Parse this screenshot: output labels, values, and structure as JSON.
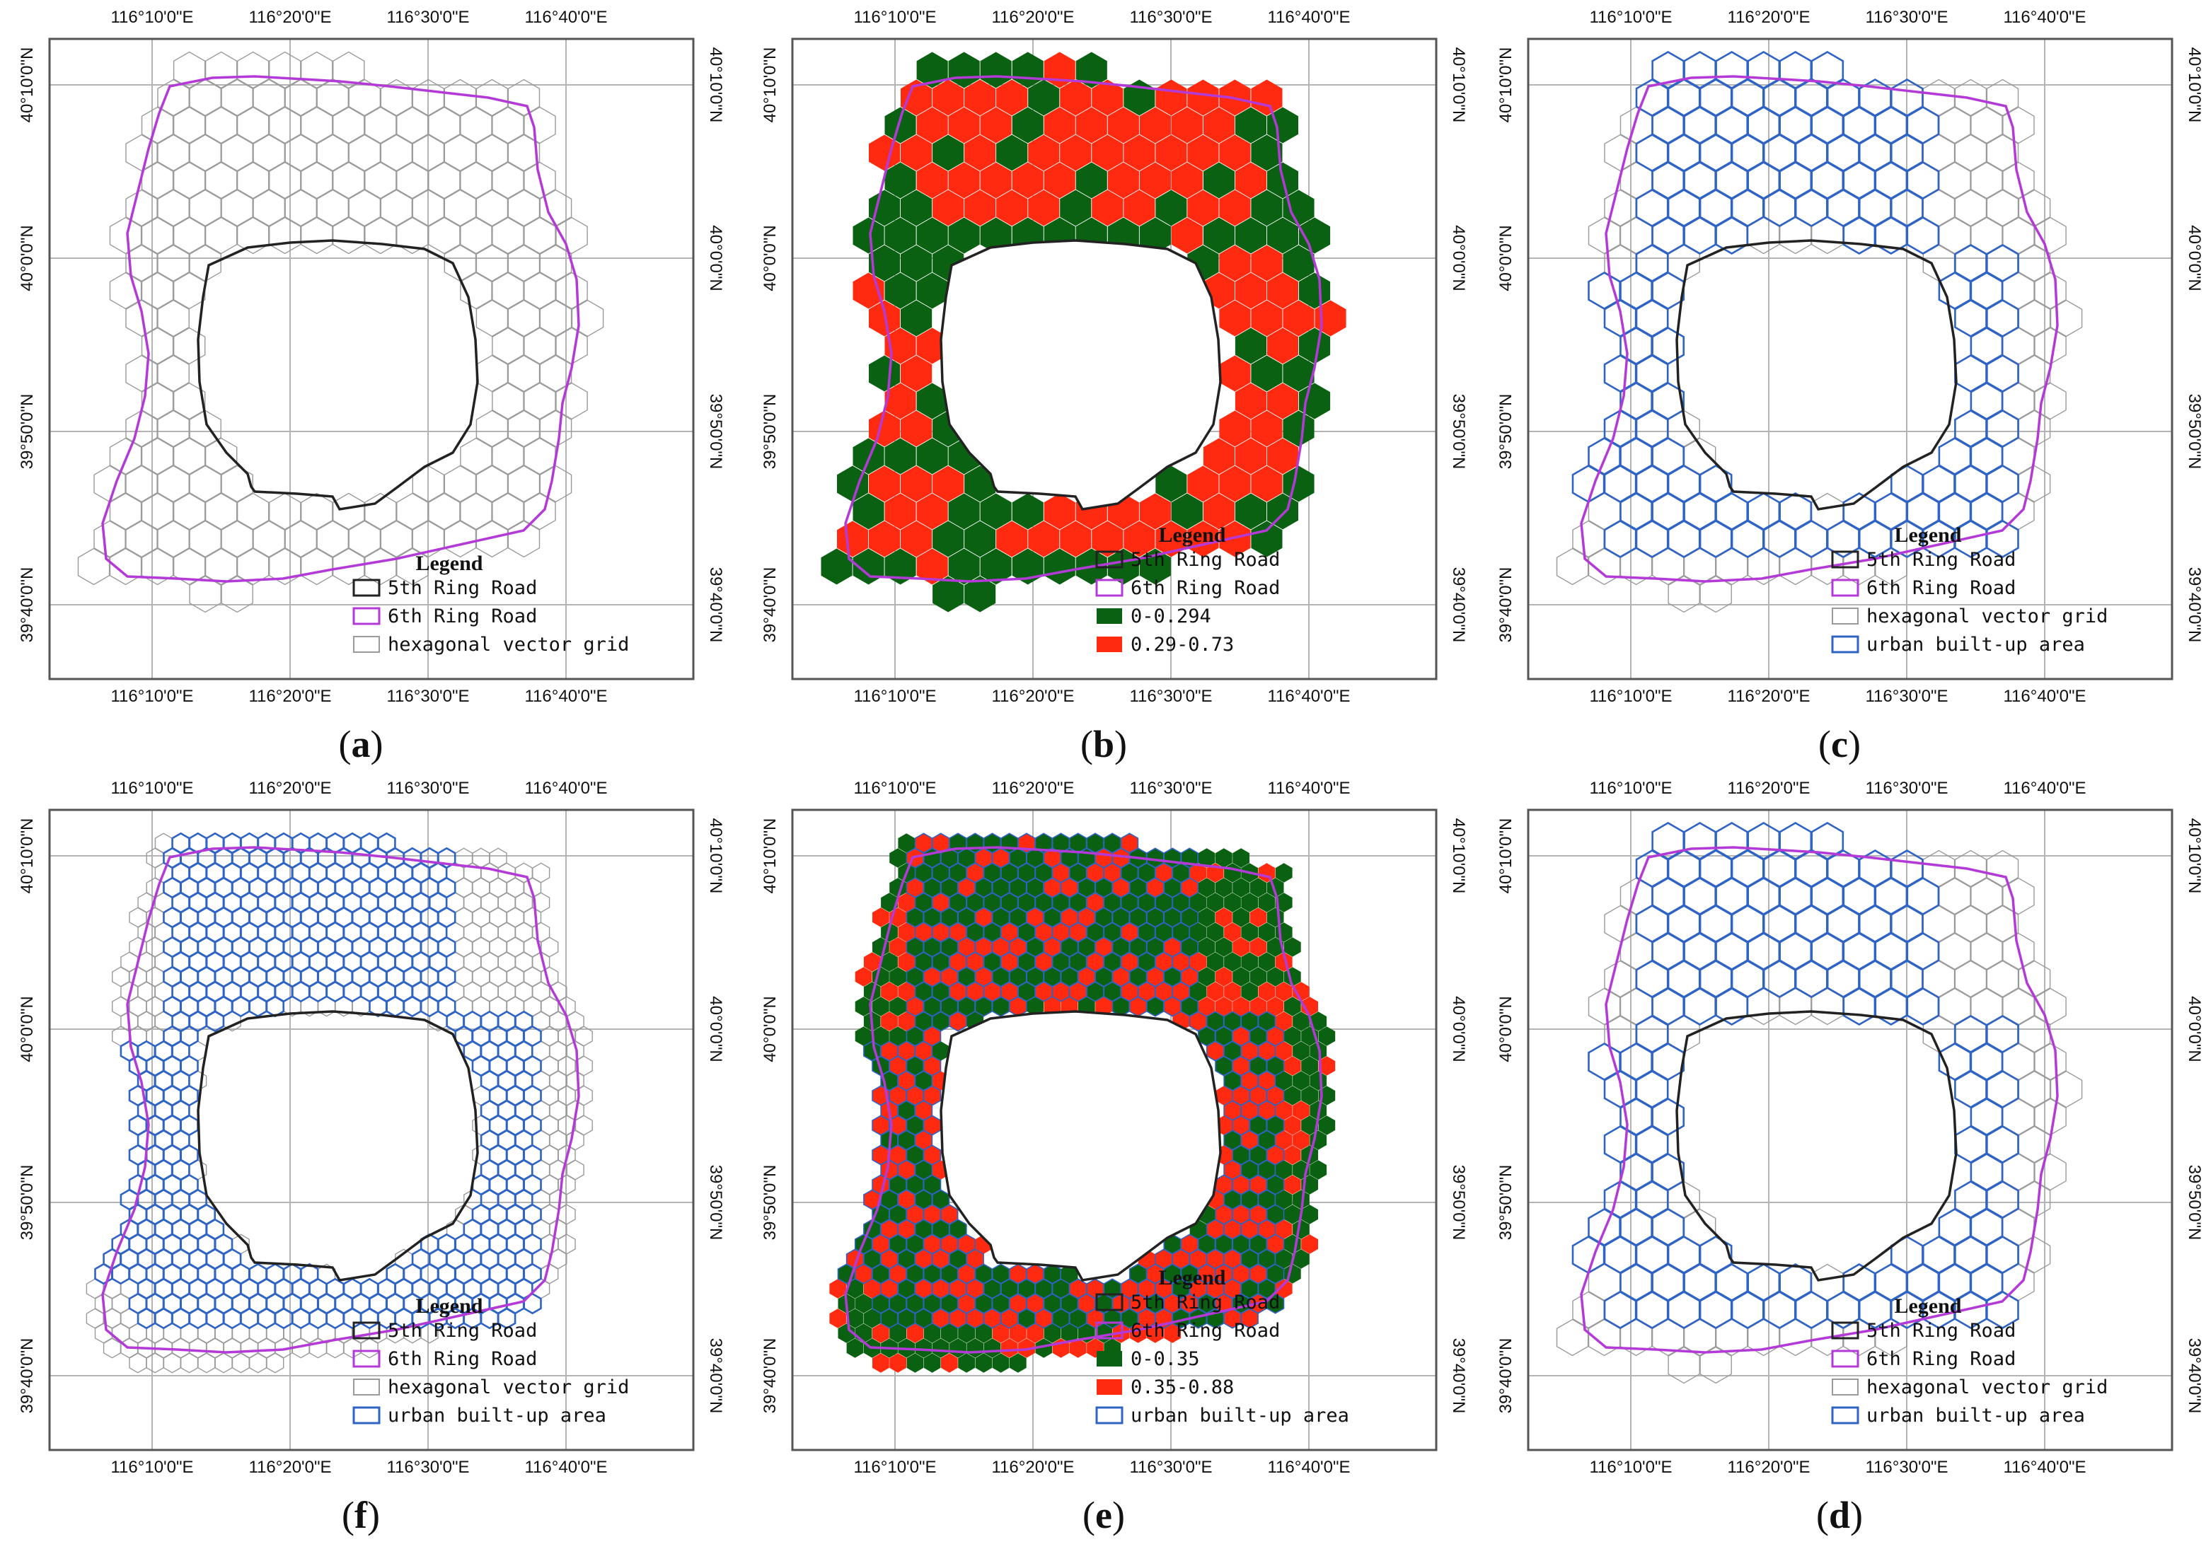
{
  "figure": {
    "colors": {
      "ring5": "#222222",
      "ring6": "#b43ad8",
      "grid": "#9a9a9a",
      "urban": "#2f63c4",
      "low": "#0a6112",
      "high": "#ff2a10",
      "frame": "#555555",
      "graticule": "#b4b4b4"
    },
    "panels": [
      {
        "id": "a",
        "label_open": "(",
        "label_letter": "a",
        "label_close": ")",
        "style": "grid",
        "legend": {
          "title": "Legend",
          "items": [
            {
              "text": "5th Ring Road",
              "kind": "ring5"
            },
            {
              "text": "6th Ring Road",
              "kind": "ring6"
            },
            {
              "text": "hexagonal vector grid",
              "kind": "grid"
            }
          ]
        }
      },
      {
        "id": "b",
        "label_open": "(",
        "label_letter": "b",
        "label_close": ")",
        "style": "classified",
        "legend": {
          "title": "Legend",
          "items": [
            {
              "text": "5th Ring Road",
              "kind": "ring5"
            },
            {
              "text": "6th Ring Road",
              "kind": "ring6"
            },
            {
              "text": "0-0.294",
              "kind": "low"
            },
            {
              "text": "0.29-0.73",
              "kind": "high"
            }
          ]
        }
      },
      {
        "id": "c",
        "label_open": "(",
        "label_letter": "c",
        "label_close": ")",
        "style": "urban",
        "legend": {
          "title": "Legend",
          "items": [
            {
              "text": "5th Ring Road",
              "kind": "ring5"
            },
            {
              "text": "6th Ring Road",
              "kind": "ring6"
            },
            {
              "text": "hexagonal vector grid",
              "kind": "grid"
            },
            {
              "text": "urban built-up area",
              "kind": "urban"
            }
          ]
        }
      },
      {
        "id": "f",
        "label_open": "(",
        "label_letter": "f",
        "label_close": ")",
        "style": "urban-fine",
        "legend": {
          "title": "Legend",
          "items": [
            {
              "text": "5th Ring Road",
              "kind": "ring5"
            },
            {
              "text": "6th Ring Road",
              "kind": "ring6"
            },
            {
              "text": "hexagonal vector grid",
              "kind": "grid"
            },
            {
              "text": "urban built-up area",
              "kind": "urban"
            }
          ]
        }
      },
      {
        "id": "e",
        "label_open": "(",
        "label_letter": "e",
        "label_close": ")",
        "style": "classified-fine",
        "legend": {
          "title": "Legend",
          "items": [
            {
              "text": "5th Ring Road",
              "kind": "ring5"
            },
            {
              "text": "6th Ring Road",
              "kind": "ring6"
            },
            {
              "text": "0-0.35",
              "kind": "low"
            },
            {
              "text": "0.35-0.88",
              "kind": "high"
            },
            {
              "text": "urban built-up area",
              "kind": "urban"
            }
          ]
        }
      },
      {
        "id": "d",
        "label_open": "(",
        "label_letter": "d",
        "label_close": ")",
        "style": "urban",
        "legend": {
          "title": "Legend",
          "items": [
            {
              "text": "5th Ring Road",
              "kind": "ring5"
            },
            {
              "text": "6th Ring Road",
              "kind": "ring6"
            },
            {
              "text": "hexagonal vector grid",
              "kind": "grid"
            },
            {
              "text": "urban built-up area",
              "kind": "urban"
            }
          ]
        }
      }
    ],
    "axes": {
      "longitude_labels": [
        "116°10'0\"E",
        "116°20'0\"E",
        "116°30'0\"E",
        "116°40'0\"E"
      ],
      "latitude_labels": [
        "40°10'0\"N",
        "40°0'0\"N",
        "39°50'0\"N",
        "39°40'0\"N"
      ]
    }
  }
}
